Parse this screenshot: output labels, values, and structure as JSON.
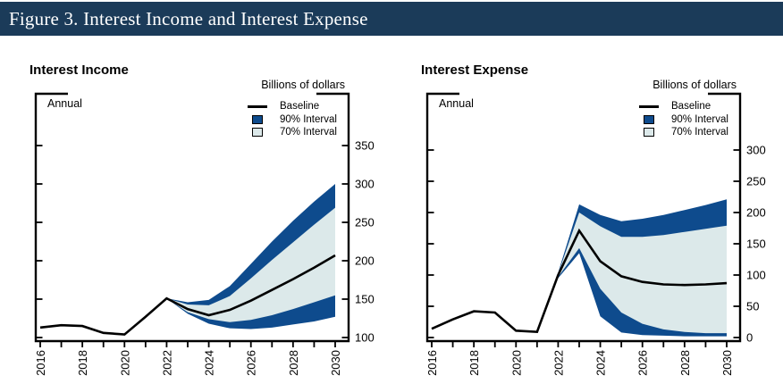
{
  "header": {
    "title": "Figure 3. Interest Income and Interest Expense"
  },
  "colors": {
    "banner_bg": "#1b3b59",
    "banner_text": "#ffffff",
    "band_90": "#0e4b8d",
    "band_70": "#dce9ea",
    "baseline_line": "#000000",
    "axis": "#000000"
  },
  "legend": {
    "baseline": "Baseline",
    "interval90": "90% Interval",
    "interval70": "70% Interval"
  },
  "chart_data": [
    {
      "type": "area",
      "title": "Interest Income",
      "units_label": "Billions of dollars",
      "frequency_label": "Annual",
      "legend_position": "top-right",
      "grid": false,
      "years": [
        2016,
        2017,
        2018,
        2019,
        2020,
        2021,
        2022,
        2023,
        2024,
        2025,
        2026,
        2027,
        2028,
        2029,
        2030
      ],
      "x_tick_labels": [
        "2016",
        "2018",
        "2020",
        "2022",
        "2024",
        "2026",
        "2028",
        "2030"
      ],
      "baseline": [
        113,
        116,
        115,
        106,
        104,
        127,
        151,
        137,
        129,
        136,
        148,
        162,
        176,
        191,
        207
      ],
      "fan": {
        "years": [
          2022,
          2023,
          2024,
          2025,
          2026,
          2027,
          2028,
          2029,
          2030
        ],
        "upper_90": [
          151,
          146,
          149,
          167,
          196,
          225,
          252,
          277,
          300
        ],
        "upper_70": [
          151,
          143,
          142,
          154,
          177,
          201,
          224,
          247,
          269
        ],
        "lower_70": [
          151,
          133,
          124,
          120,
          123,
          129,
          137,
          146,
          155
        ],
        "lower_90": [
          151,
          131,
          118,
          112,
          111,
          113,
          117,
          121,
          127
        ]
      },
      "y_axis": {
        "side": "right",
        "ticks": [
          100,
          150,
          200,
          250,
          300,
          350
        ],
        "ylim": [
          100,
          350
        ]
      }
    },
    {
      "type": "area",
      "title": "Interest Expense",
      "units_label": "Billions of dollars",
      "frequency_label": "Annual",
      "legend_position": "top-right",
      "grid": false,
      "years": [
        2016,
        2017,
        2018,
        2019,
        2020,
        2021,
        2022,
        2023,
        2024,
        2025,
        2026,
        2027,
        2028,
        2029,
        2030
      ],
      "x_tick_labels": [
        "2016",
        "2018",
        "2020",
        "2022",
        "2024",
        "2026",
        "2028",
        "2030"
      ],
      "baseline": [
        14,
        29,
        42,
        40,
        11,
        9,
        100,
        171,
        122,
        98,
        89,
        85,
        84,
        85,
        87
      ],
      "fan": {
        "years": [
          2022,
          2023,
          2024,
          2025,
          2026,
          2027,
          2028,
          2029,
          2030
        ],
        "upper_90": [
          104,
          213,
          196,
          186,
          190,
          196,
          204,
          212,
          221
        ],
        "upper_70": [
          102,
          200,
          178,
          161,
          161,
          164,
          169,
          174,
          179
        ],
        "lower_70": [
          97,
          143,
          78,
          40,
          22,
          13,
          9,
          7,
          7
        ],
        "lower_90": [
          95,
          135,
          34,
          8,
          4,
          3,
          2,
          2,
          2
        ]
      },
      "y_axis": {
        "side": "right",
        "ticks": [
          0,
          50,
          100,
          150,
          200,
          250,
          300
        ],
        "ylim": [
          0,
          300
        ]
      }
    }
  ]
}
